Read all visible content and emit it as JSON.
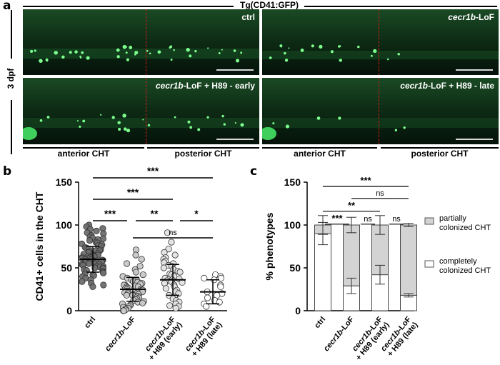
{
  "panel_a": {
    "letter": "a",
    "header": "Tg(CD41:GFP)",
    "side_label": "3 dpf",
    "images": [
      {
        "label": "ctrl"
      },
      {
        "label": "cecr1b-LoF"
      },
      {
        "label": "cecr1b-LoF + H89 - early"
      },
      {
        "label": "cecr1b-LoF + H89 - late"
      }
    ],
    "regions": [
      "anterior CHT",
      "posterior CHT",
      "anterior CHT",
      "posterior CHT"
    ]
  },
  "chart_data": [
    {
      "panel": "b",
      "type": "scatter",
      "ylabel": "CD41+ cells in the CHT",
      "ylim": [
        0,
        150
      ],
      "yticks": [
        0,
        50,
        100,
        150
      ],
      "categories": [
        "ctrl",
        "cecr1b-LoF",
        "cecr1b-LoF + H89 (early)",
        "cecr1b-LoF + H89 (late)"
      ],
      "category_labels": [
        {
          "l1": "ctrl",
          "l2": ""
        },
        {
          "l1": "cecr1b-LoF",
          "l2": ""
        },
        {
          "l1": "cecr1b-LoF",
          "l2": "+ H89 (early)"
        },
        {
          "l1": "cecr1b-LoF",
          "l2": "+ H89 (late)"
        }
      ],
      "series": [
        {
          "mean": 60,
          "sd": 15,
          "color": "#6e6e6e",
          "values": [
            100,
            98,
            96,
            95,
            93,
            91,
            90,
            88,
            86,
            85,
            84,
            83,
            82,
            80,
            79,
            78,
            77,
            76,
            75,
            74,
            73,
            72,
            71,
            70,
            70,
            69,
            68,
            67,
            66,
            65,
            65,
            64,
            63,
            63,
            62,
            62,
            61,
            61,
            60,
            60,
            59,
            59,
            58,
            58,
            57,
            57,
            56,
            56,
            55,
            55,
            54,
            54,
            53,
            52,
            52,
            51,
            50,
            50,
            49,
            48,
            47,
            46,
            45,
            44,
            43,
            42,
            41,
            40,
            38,
            36,
            34,
            32,
            30,
            28
          ]
        },
        {
          "mean": 25,
          "sd": 14,
          "color": "#c8c8c8",
          "values": [
            71,
            65,
            60,
            55,
            52,
            48,
            45,
            42,
            40,
            38,
            36,
            35,
            34,
            33,
            32,
            31,
            30,
            30,
            29,
            28,
            28,
            27,
            26,
            26,
            25,
            25,
            24,
            24,
            23,
            23,
            22,
            22,
            21,
            21,
            20,
            20,
            19,
            19,
            18,
            18,
            17,
            16,
            15,
            14,
            13,
            12,
            11,
            10,
            9,
            8,
            7,
            6,
            5,
            4,
            3,
            2,
            1,
            0,
            0,
            0
          ]
        },
        {
          "mean": 36,
          "sd": 18,
          "color": "#e4e4e4",
          "values": [
            91,
            80,
            72,
            68,
            65,
            62,
            60,
            58,
            56,
            55,
            53,
            52,
            50,
            48,
            46,
            45,
            43,
            42,
            40,
            38,
            37,
            36,
            35,
            34,
            33,
            32,
            30,
            28,
            26,
            24,
            22,
            20,
            18,
            16,
            14,
            12,
            10,
            8,
            6,
            5,
            3
          ]
        },
        {
          "mean": 22,
          "sd": 14,
          "color": "#ffffff",
          "values": [
            42,
            40,
            38,
            38,
            36,
            30,
            28,
            22,
            20,
            18,
            15,
            12,
            10,
            8,
            5
          ]
        }
      ],
      "significance": [
        {
          "from": 0,
          "to": 3,
          "label": "***"
        },
        {
          "from": 0,
          "to": 2,
          "label": "***"
        },
        {
          "from": 0,
          "to": 1,
          "label": "***"
        },
        {
          "from": 1,
          "to": 2,
          "label": "**"
        },
        {
          "from": 2,
          "to": 3,
          "label": "*"
        },
        {
          "from": 1,
          "to": 3,
          "label": "ns"
        }
      ]
    },
    {
      "panel": "c",
      "type": "bar",
      "stacked": true,
      "ylabel": "% phenotypes",
      "ylim": [
        0,
        150
      ],
      "yticks": [
        0,
        50,
        100,
        150
      ],
      "categories": [
        "ctrl",
        "cecr1b-LoF",
        "cecr1b-LoF + H89 (early)",
        "cecr1b-LoF + H89 (late)"
      ],
      "category_labels": [
        {
          "l1": "ctrl",
          "l2": ""
        },
        {
          "l1": "cecr1b-LoF",
          "l2": ""
        },
        {
          "l1": "cecr1b-LoF",
          "l2": "+ H89 (early)"
        },
        {
          "l1": "cecr1b-LoF",
          "l2": "+ H89 (late)"
        }
      ],
      "series": [
        {
          "name": "completely colonized CHT",
          "color": "#ffffff",
          "values": [
            90,
            29,
            42,
            18
          ],
          "err": [
            13,
            9,
            11,
            2
          ]
        },
        {
          "name": "partially colonized CHT",
          "color": "#d3d3d3",
          "values": [
            10,
            71,
            58,
            82
          ],
          "err": [
            11,
            9,
            11,
            2
          ]
        }
      ],
      "legend": [
        {
          "l1": "partially",
          "l2": "colonized CHT",
          "color": "#d3d3d3"
        },
        {
          "l1": "completely",
          "l2": "colonized CHT",
          "color": "#ffffff"
        }
      ],
      "significance": [
        {
          "from": 0,
          "to": 3,
          "label": "***"
        },
        {
          "from": 1,
          "to": 3,
          "label": "ns"
        },
        {
          "from": 0,
          "to": 2,
          "label": "**"
        },
        {
          "from": 0,
          "to": 1,
          "label": "***"
        },
        {
          "from": 1,
          "to": 2,
          "label": "ns"
        },
        {
          "from": 2,
          "to": 3,
          "label": "ns"
        }
      ]
    }
  ]
}
